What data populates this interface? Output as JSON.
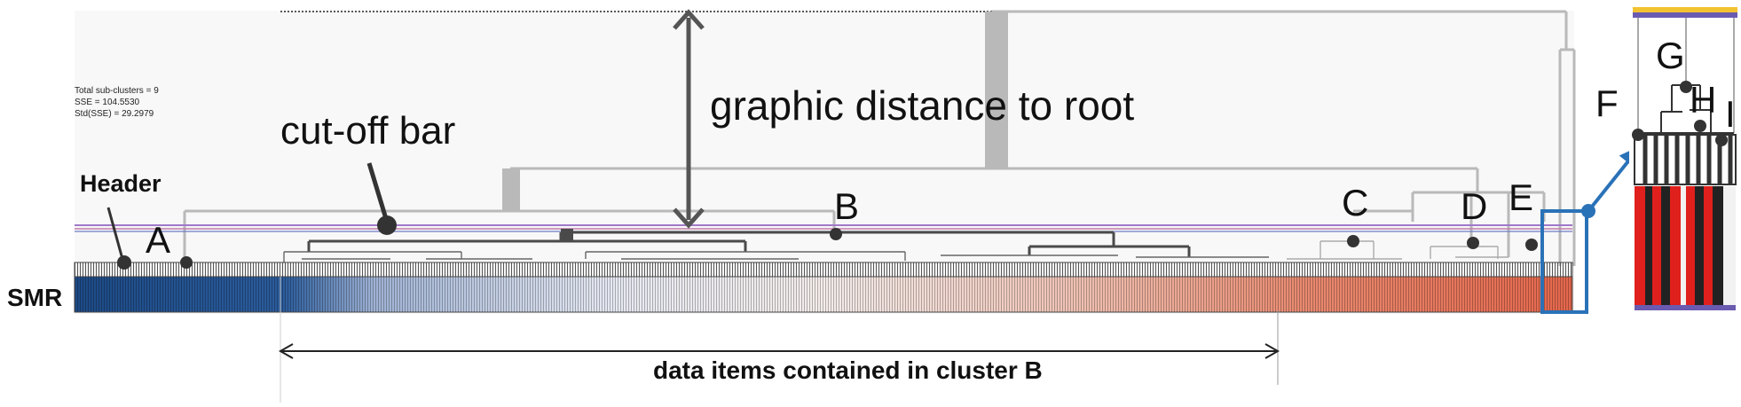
{
  "stats": {
    "total_sub_clusters": "Total sub-clusters = 9",
    "sse": "SSE = 104.5530",
    "std_sse": "Std(SSE) = 29.2979"
  },
  "annotations": {
    "cutoff_bar": "cut-off bar",
    "graphic_distance": "graphic distance to root",
    "header": "Header",
    "smr": "SMR",
    "data_items": "data items contained in cluster B"
  },
  "clusters": [
    "A",
    "B",
    "C",
    "D",
    "E",
    "F",
    "G",
    "H",
    "I"
  ],
  "colors": {
    "dendrogram_gray": "#b9b9b9",
    "dendrogram_dark": "#4a4a4a",
    "cutoff_line": "#a07ac8",
    "highlight_blue": "#2a72b8",
    "smr_blue": "#1f4f8f",
    "smr_red": "#e4674c",
    "zoom_red": "#e0201c",
    "zoom_yellow": "#f2c230",
    "zoom_purple": "#6b5bb0"
  }
}
